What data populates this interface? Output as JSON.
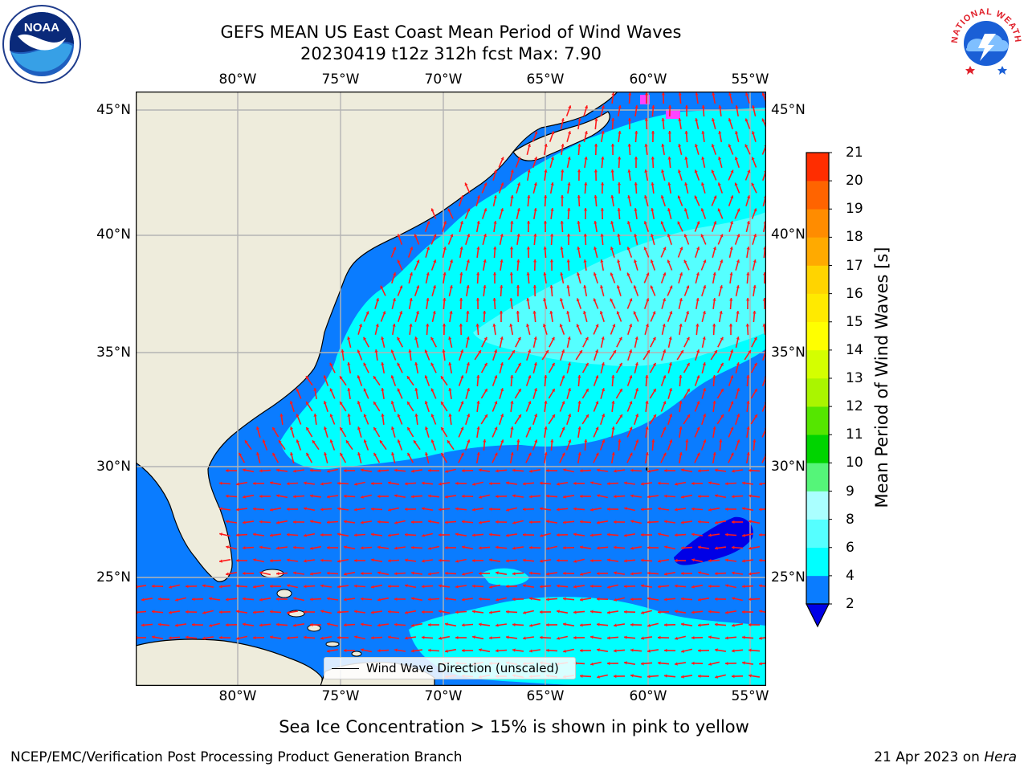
{
  "header": {
    "title_line1": "GEFS MEAN US East Coast Mean Period of Wind Waves",
    "title_line2": "20230419 t12z 312h fcst   Max: 7.90"
  },
  "logos": {
    "noaa_text": "NOAA",
    "nws_text": "NATIONAL WEATHER SERVICE"
  },
  "map": {
    "lon_labels": [
      "80°W",
      "75°W",
      "70°W",
      "65°W",
      "60°W",
      "55°W"
    ],
    "lat_labels": [
      "45°N",
      "40°N",
      "35°N",
      "30°N",
      "25°N"
    ],
    "legend_label": "Wind Wave Direction (unscaled)",
    "colors": {
      "land": "#eeecdc",
      "period_2_4": "#0a7cff",
      "period_4_6": "#00ffff",
      "period_6_8": "#55ffff",
      "below_2": "#0000e6",
      "sea_ice": "#ff44ff",
      "arrows": "#ff1a1a",
      "grid": "#b4b4b4"
    }
  },
  "colorbar": {
    "label": "Mean Period of Wind Waves [s]",
    "ticks": [
      "2",
      "4",
      "6",
      "8",
      "9",
      "10",
      "11",
      "12",
      "13",
      "14",
      "15",
      "16",
      "17",
      "18",
      "19",
      "20",
      "21"
    ],
    "colors": [
      "#0a7cff",
      "#00ffff",
      "#55ffff",
      "#aaffff",
      "#55f579",
      "#00d400",
      "#55e600",
      "#aaf500",
      "#d4ff00",
      "#ffff00",
      "#ffea00",
      "#ffd400",
      "#ffaa00",
      "#ff8c00",
      "#ff6400",
      "#ff2d00"
    ],
    "extend_color": "#0000e6"
  },
  "notes": {
    "sea_ice": "Sea Ice Concentration > 15% is shown in pink to yellow"
  },
  "footer": {
    "left": "NCEP/EMC/Verification Post Processing Product Generation Branch",
    "right_prefix": "21 Apr 2023 on ",
    "right_host": "Hera"
  }
}
